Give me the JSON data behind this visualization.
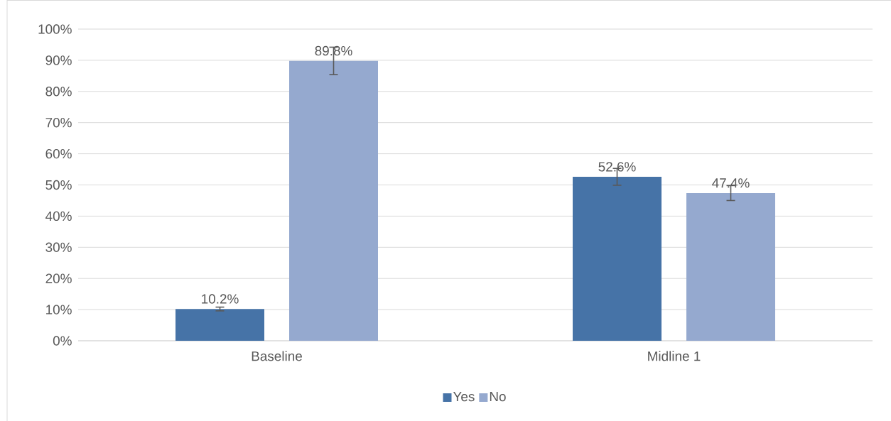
{
  "chart_data": {
    "type": "bar",
    "categories": [
      "Baseline",
      "Midline 1"
    ],
    "series": [
      {
        "name": "Yes",
        "color": "#4673a7",
        "values": [
          10.2,
          52.6
        ],
        "errors": [
          0.6,
          2.7
        ],
        "value_labels": [
          "10.2%",
          "52.6%"
        ]
      },
      {
        "name": "No",
        "color": "#95a9cf",
        "values": [
          89.8,
          47.4
        ],
        "errors": [
          4.4,
          2.4
        ],
        "value_labels": [
          "89.8%",
          "47.4%"
        ]
      }
    ],
    "ylim": [
      0,
      100
    ],
    "yticks": [
      {
        "value": 0,
        "label": "0%"
      },
      {
        "value": 10,
        "label": "10%"
      },
      {
        "value": 20,
        "label": "20%"
      },
      {
        "value": 30,
        "label": "30%"
      },
      {
        "value": 40,
        "label": "40%"
      },
      {
        "value": 50,
        "label": "50%"
      },
      {
        "value": 60,
        "label": "60%"
      },
      {
        "value": 70,
        "label": "70%"
      },
      {
        "value": 80,
        "label": "80%"
      },
      {
        "value": 90,
        "label": "90%"
      },
      {
        "value": 100,
        "label": "100%"
      }
    ],
    "grid": "y",
    "legend": "bottom"
  }
}
